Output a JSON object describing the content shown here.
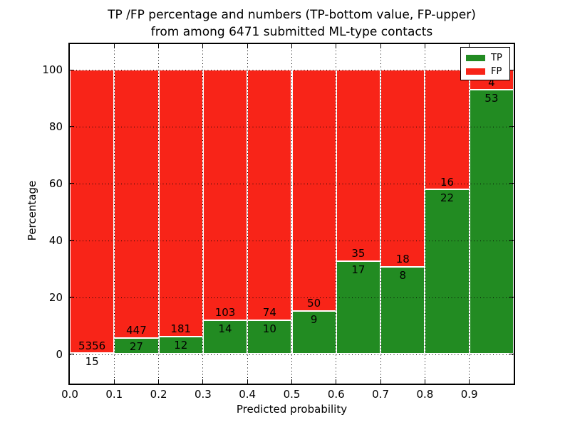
{
  "figure": {
    "title_line1": "TP /FP percentage and numbers (TP-bottom value, FP-upper)",
    "title_line2": "from among 6471 submitted ML-type contacts",
    "xlabel": "Predicted probability",
    "ylabel": "Percentage"
  },
  "legend": {
    "items": [
      {
        "label": "TP",
        "color": "#228b22"
      },
      {
        "label": "FP",
        "color": "#f82418"
      }
    ]
  },
  "chart_data": {
    "type": "bar",
    "variant": "stacked-percentage-histogram",
    "title": "TP /FP percentage and numbers (TP-bottom value, FP-upper) from among 6471 submitted ML-type contacts",
    "xlabel": "Predicted probability",
    "ylabel": "Percentage",
    "xlim": [
      0.0,
      1.0
    ],
    "ylim": [
      -10.4,
      109.1
    ],
    "grid": true,
    "grid_style": "dotted",
    "legend_position": "upper-right",
    "x_tick_labels": [
      "0.0",
      "0.1",
      "0.2",
      "0.3",
      "0.4",
      "0.5",
      "0.6",
      "0.7",
      "0.8",
      "0.9"
    ],
    "y_ticks": [
      0,
      20,
      40,
      60,
      80,
      100
    ],
    "bin_edges": [
      0.0,
      0.1,
      0.2,
      0.3,
      0.4,
      0.5,
      0.6,
      0.7,
      0.8,
      0.9,
      1.0
    ],
    "total_contacts": 6471,
    "series": [
      {
        "name": "TP",
        "color": "#228b22",
        "counts": [
          15,
          27,
          12,
          14,
          10,
          9,
          17,
          8,
          22,
          53
        ]
      },
      {
        "name": "FP",
        "color": "#f82418",
        "counts": [
          5356,
          447,
          181,
          103,
          74,
          50,
          35,
          18,
          16,
          4
        ]
      }
    ],
    "tp_percent_of_bin": [
      0.28,
      5.7,
      6.22,
      11.97,
      11.9,
      15.25,
      32.69,
      30.77,
      57.89,
      92.98
    ]
  }
}
